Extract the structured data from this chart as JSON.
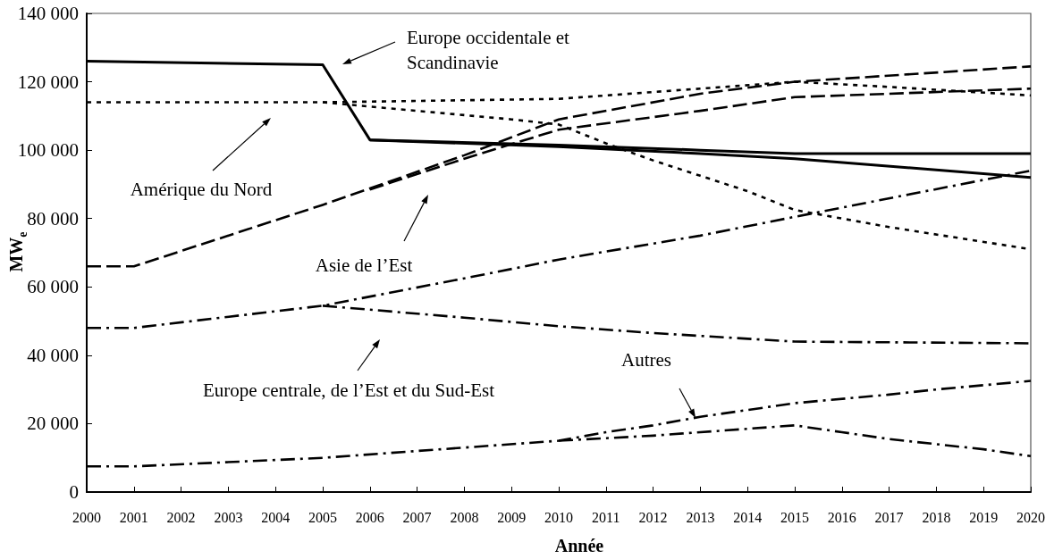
{
  "chart_data": {
    "type": "line",
    "xlabel": "Année",
    "ylabel": "MW$_{e}$",
    "marker": "none",
    "xlim": [
      2000,
      2020
    ],
    "xticks": [
      2000,
      2001,
      2002,
      2003,
      2004,
      2005,
      2006,
      2007,
      2008,
      2009,
      2010,
      2011,
      2012,
      2013,
      2014,
      2015,
      2016,
      2017,
      2018,
      2019,
      2020
    ],
    "ylim": [
      0,
      140000
    ],
    "yticks": [
      0,
      {
        "value": 20000,
        "label": "20 000"
      },
      {
        "value": 40000,
        "label": "40 000"
      },
      {
        "value": 60000,
        "label": "60 000"
      },
      {
        "value": 80000,
        "label": "80 000"
      },
      {
        "value": 100000,
        "label": "100 000"
      },
      {
        "value": 120000,
        "label": "120 000"
      },
      {
        "value": 140000,
        "label": "140 000"
      }
    ],
    "series": [
      {
        "color": "#000000",
        "line_style": "solid",
        "x": [
          2000,
          2005,
          2006,
          2010,
          2013,
          2015,
          2020
        ],
        "values": [
          126000,
          125000,
          103000,
          101500,
          100000,
          99000,
          99000
        ]
      },
      {
        "color": "#000000",
        "line_style": "solid",
        "x": [
          2006,
          2010,
          2013,
          2015,
          2020
        ],
        "values": [
          103000,
          101000,
          99000,
          97500,
          92000
        ]
      },
      {
        "color": "#000000",
        "line_style": "dotted",
        "x": [
          2000,
          2005,
          2010,
          2013,
          2015,
          2017,
          2020
        ],
        "values": [
          114000,
          114000,
          115000,
          118000,
          120000,
          118500,
          116000
        ]
      },
      {
        "color": "#000000",
        "line_style": "dotted",
        "x": [
          2005,
          2007,
          2009,
          2010,
          2011,
          2012,
          2013,
          2014,
          2015,
          2017,
          2020
        ],
        "values": [
          114000,
          111500,
          109000,
          107500,
          102000,
          97000,
          92500,
          88000,
          82500,
          77500,
          71000
        ]
      },
      {
        "color": "#000000",
        "line_style": "dashed",
        "x": [
          2000,
          2001,
          2005,
          2008,
          2010,
          2013,
          2015,
          2020
        ],
        "values": [
          66000,
          66000,
          84000,
          98500,
          109000,
          116500,
          120000,
          124500
        ]
      },
      {
        "color": "#000000",
        "line_style": "dashed",
        "x": [
          2006,
          2008,
          2010,
          2013,
          2015,
          2020
        ],
        "values": [
          88500,
          97500,
          106000,
          111500,
          115500,
          118000
        ]
      },
      {
        "color": "#000000",
        "line_style": "dashdot",
        "x": [
          2000,
          2001,
          2005,
          2008,
          2010,
          2013,
          2015,
          2020
        ],
        "values": [
          48000,
          48000,
          54500,
          62500,
          68000,
          75000,
          80500,
          94000
        ]
      },
      {
        "color": "#000000",
        "line_style": "dashdot",
        "x": [
          2005,
          2008,
          2010,
          2012,
          2015,
          2020
        ],
        "values": [
          54500,
          51000,
          48500,
          46500,
          44000,
          43500
        ]
      },
      {
        "color": "#000000",
        "line_style": "dashdot",
        "x": [
          2000,
          2001,
          2005,
          2010,
          2011,
          2012,
          2013,
          2015,
          2017,
          2018,
          2020
        ],
        "values": [
          7500,
          7500,
          10000,
          15000,
          17500,
          19500,
          22000,
          26000,
          28500,
          30000,
          32500
        ]
      },
      {
        "color": "#000000",
        "line_style": "dashdot",
        "x": [
          2010,
          2012,
          2013,
          2014,
          2015,
          2016,
          2017,
          2018,
          2019,
          2020
        ],
        "values": [
          15000,
          16500,
          17500,
          18500,
          19500,
          17500,
          15500,
          14000,
          12500,
          10500
        ]
      }
    ],
    "annotations": [
      "Europe occidentale et Scandinavie",
      "Amérique du Nord",
      "Asie de l’Est",
      "Europe centrale, de l’Est et du Sud-Est",
      "Autres"
    ]
  }
}
